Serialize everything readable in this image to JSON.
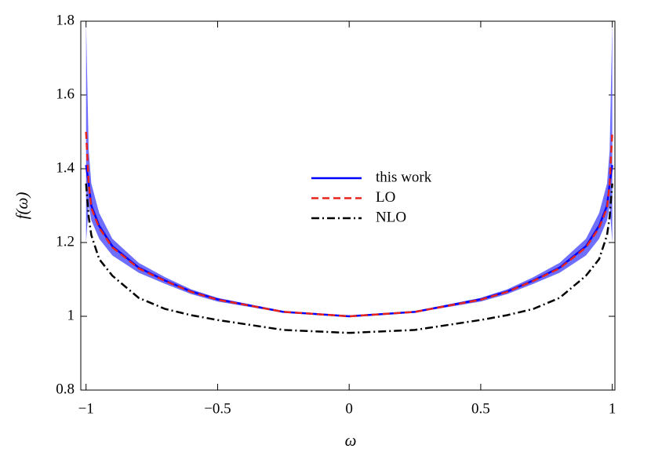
{
  "chart_data": {
    "type": "line",
    "xlabel": "ω",
    "ylabel": "f(ω)",
    "x": [
      -1,
      -0.99,
      -0.98,
      -0.95,
      -0.9,
      -0.8,
      -0.7,
      -0.6,
      -0.5,
      -0.25,
      0,
      0.25,
      0.5,
      0.6,
      0.7,
      0.8,
      0.9,
      0.95,
      0.98,
      0.99,
      1
    ],
    "band": {
      "color": "#5555ff",
      "upper": [
        1.8,
        1.45,
        1.36,
        1.28,
        1.21,
        1.145,
        1.106,
        1.073,
        1.05,
        1.014,
        1.002,
        1.014,
        1.05,
        1.073,
        1.106,
        1.145,
        1.21,
        1.28,
        1.36,
        1.45,
        1.8
      ],
      "lower": [
        1.2,
        1.3,
        1.26,
        1.21,
        1.165,
        1.118,
        1.088,
        1.06,
        1.04,
        1.01,
        0.998,
        1.01,
        1.04,
        1.06,
        1.088,
        1.118,
        1.165,
        1.21,
        1.26,
        1.3,
        1.2
      ]
    },
    "series": [
      {
        "name": "this work",
        "color": "#0000ff",
        "dash": "solid",
        "values": [
          1.41,
          1.36,
          1.3,
          1.245,
          1.19,
          1.132,
          1.097,
          1.067,
          1.046,
          1.012,
          1.0,
          1.012,
          1.046,
          1.067,
          1.097,
          1.132,
          1.19,
          1.245,
          1.3,
          1.36,
          1.41
        ]
      },
      {
        "name": "LO",
        "color": "#e8231b",
        "dash": "dashed",
        "values": [
          1.5,
          1.36,
          1.294,
          1.24,
          1.187,
          1.13,
          1.096,
          1.066,
          1.045,
          1.012,
          1.0,
          1.012,
          1.045,
          1.066,
          1.096,
          1.13,
          1.187,
          1.24,
          1.294,
          1.36,
          1.5
        ]
      },
      {
        "name": "NLO",
        "color": "#000000",
        "dash": "dashdot",
        "values": [
          1.36,
          1.27,
          1.22,
          1.155,
          1.11,
          1.05,
          1.02,
          1.003,
          0.99,
          0.963,
          0.955,
          0.963,
          0.99,
          1.003,
          1.02,
          1.05,
          1.11,
          1.155,
          1.22,
          1.27,
          1.36
        ]
      }
    ],
    "xlim": [
      -1.02,
      1.01
    ],
    "ylim": [
      0.8,
      1.8
    ],
    "xticks": [
      {
        "value": -1,
        "label": "−1"
      },
      {
        "value": -0.5,
        "label": "−0.5"
      },
      0,
      0.5,
      1
    ],
    "yticks": [
      0.8,
      1,
      1.2,
      1.4,
      1.6,
      1.8
    ],
    "legend_position": "center"
  }
}
